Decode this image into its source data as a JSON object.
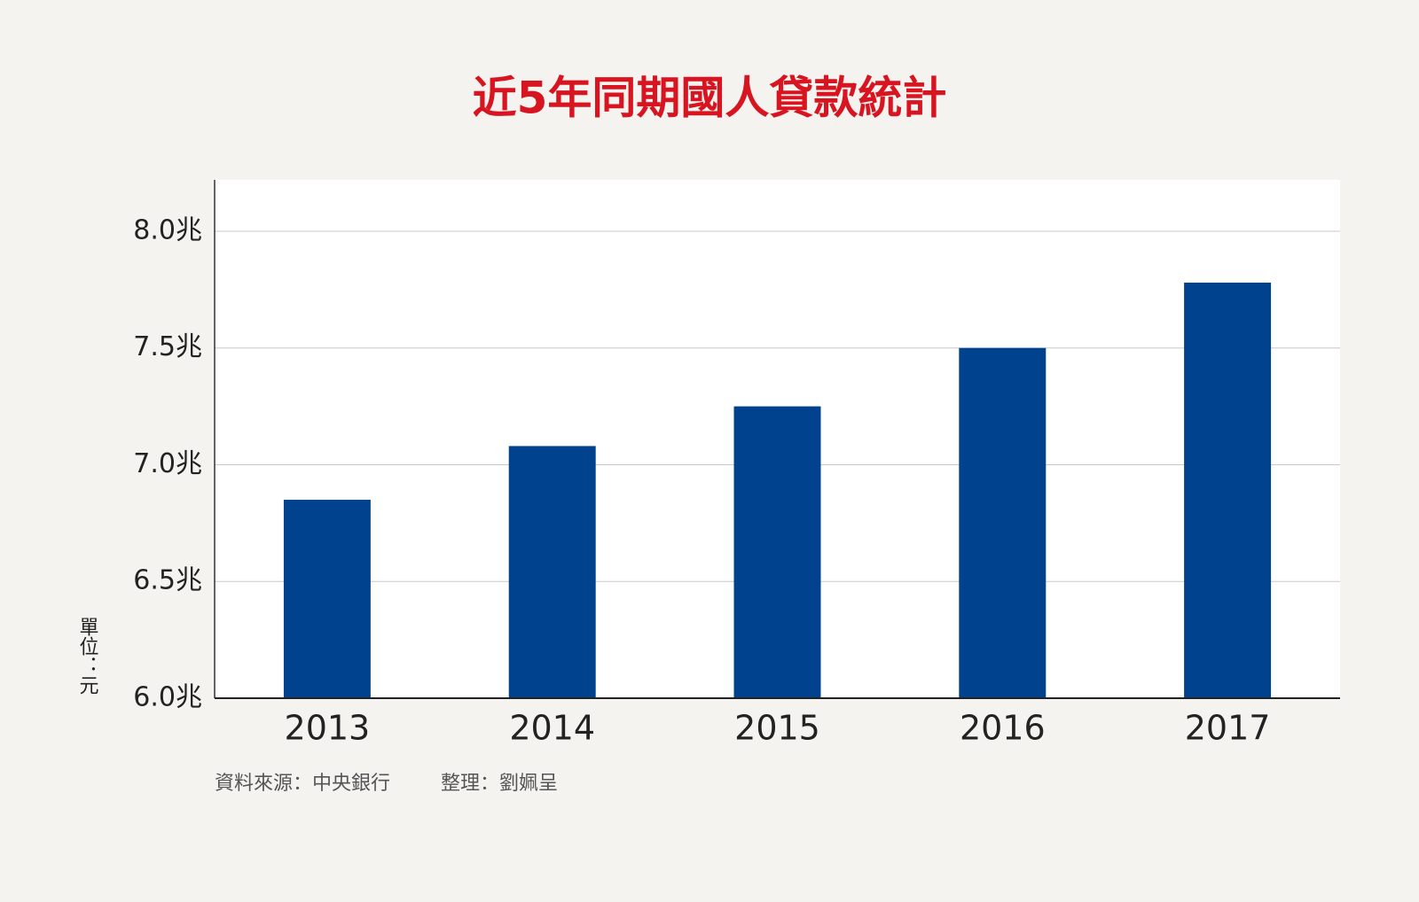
{
  "chart_data": {
    "type": "bar",
    "title": "近5年同期國人貸款統計",
    "categories": [
      "2013",
      "2014",
      "2015",
      "2016",
      "2017"
    ],
    "values": [
      6.85,
      7.08,
      7.25,
      7.5,
      7.78
    ],
    "color": "#01428e",
    "ylim": [
      6.0,
      8.22
    ],
    "yticks": [
      {
        "value": 6.0,
        "label": "6.0兆"
      },
      {
        "value": 6.5,
        "label": "6.5兆"
      },
      {
        "value": 7.0,
        "label": "7.0兆"
      },
      {
        "value": 7.5,
        "label": "7.5兆"
      },
      {
        "value": 8.0,
        "label": "8.0兆"
      }
    ],
    "grid": true,
    "y_unit_label": "單位：元",
    "source": "資料來源：中央銀行",
    "credit": "整理：劉姵呈"
  }
}
